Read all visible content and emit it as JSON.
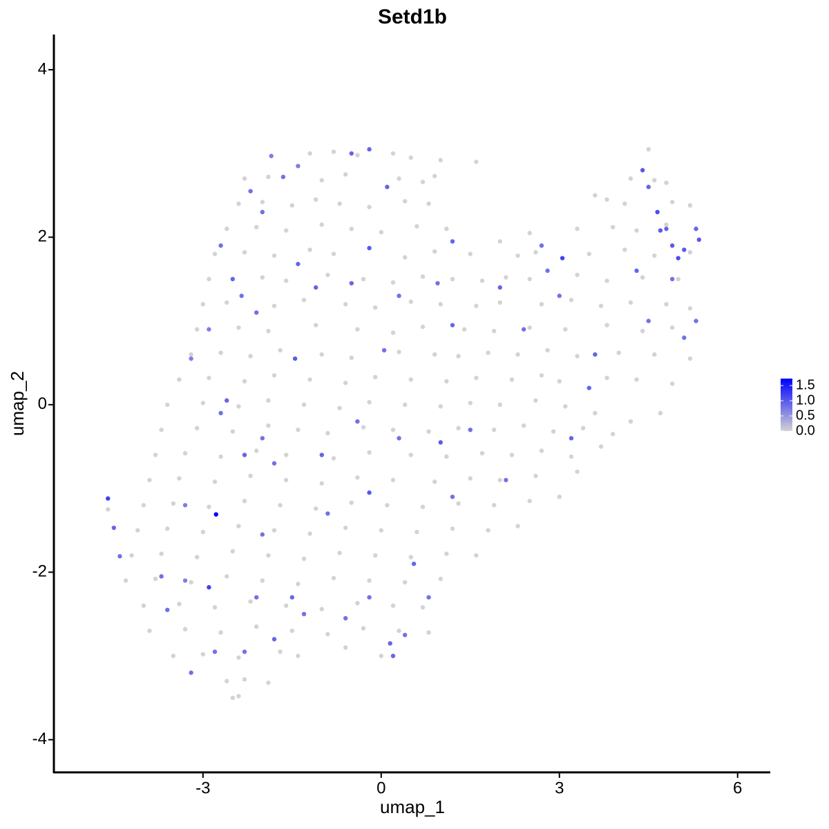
{
  "chart_data": {
    "type": "scatter",
    "title": "Setd1b",
    "x_label": "umap_1",
    "y_label": "umap_2",
    "xlim": [
      -5.51,
      6.55
    ],
    "ylim": [
      -4.39,
      4.42
    ],
    "xticks": [
      -3,
      0,
      3,
      6
    ],
    "yticks": [
      -4,
      -2,
      0,
      2,
      4
    ],
    "low_color": "#d3d3d3",
    "high_color": "#0000ff",
    "colorlim": [
      0,
      1.73
    ],
    "colorticks": [
      {
        "value": 0,
        "label": "0.0"
      },
      0.5,
      {
        "value": 1,
        "label": "1.0"
      },
      1.5
    ],
    "x": [
      -1.2,
      -0.8,
      -0.4,
      0.2,
      0.5,
      1.0,
      1.6,
      4.5,
      -2.3,
      -1.9,
      -1.0,
      -0.6,
      0.3,
      0.7,
      0.9,
      4.2,
      4.6,
      4.8,
      -2.4,
      -2.0,
      -1.5,
      -1.1,
      -0.7,
      -0.2,
      0.4,
      0.8,
      3.6,
      3.8,
      4.1,
      4.9,
      5.2,
      -2.6,
      -2.1,
      -1.6,
      -1.0,
      -0.5,
      0.0,
      0.6,
      1.1,
      2.0,
      2.5,
      3.3,
      3.9,
      4.3,
      4.8,
      -2.8,
      -2.3,
      -1.8,
      -1.2,
      -0.8,
      0.4,
      0.9,
      1.5,
      2.3,
      2.6,
      3.5,
      4.1,
      4.6,
      5.2,
      -2.9,
      -2.0,
      -1.6,
      -0.9,
      -0.3,
      0.2,
      0.7,
      1.2,
      1.7,
      2.1,
      2.5,
      3.3,
      3.8,
      4.4,
      5.0,
      -3.0,
      -2.6,
      -1.8,
      -1.3,
      -0.6,
      -0.1,
      0.5,
      1.0,
      1.6,
      2.0,
      2.7,
      3.2,
      3.7,
      4.2,
      4.8,
      5.2,
      -3.1,
      -2.4,
      -1.9,
      -1.1,
      -0.4,
      0.2,
      0.7,
      1.4,
      1.9,
      2.5,
      3.1,
      3.8,
      4.4,
      4.9,
      -3.2,
      -2.7,
      -2.2,
      -1.7,
      -1.0,
      -0.5,
      0.3,
      0.9,
      1.3,
      1.8,
      2.3,
      2.8,
      3.3,
      4.0,
      4.6,
      5.2,
      -3.4,
      -2.9,
      -2.3,
      -1.8,
      -1.2,
      -0.6,
      -0.1,
      0.5,
      1.1,
      1.6,
      2.2,
      2.7,
      3.0,
      3.8,
      4.3,
      4.9,
      -3.6,
      -3.0,
      -2.4,
      -1.9,
      -1.3,
      -0.7,
      -0.2,
      0.4,
      1.0,
      1.5,
      2.0,
      2.6,
      3.1,
      3.6,
      4.2,
      4.7,
      -3.7,
      -3.1,
      -2.5,
      -1.9,
      -1.4,
      -0.9,
      -0.3,
      0.2,
      0.8,
      1.3,
      1.9,
      2.4,
      2.9,
      3.4,
      3.9,
      -3.8,
      -3.3,
      -2.7,
      -2.1,
      -1.6,
      -0.8,
      -0.2,
      0.5,
      1.1,
      1.7,
      2.2,
      2.7,
      3.2,
      3.7,
      -3.9,
      -3.4,
      -2.8,
      -2.2,
      -1.6,
      -1.0,
      -0.4,
      0.2,
      0.9,
      1.5,
      2.0,
      2.6,
      3.3,
      -4.6,
      -4.0,
      -3.5,
      -2.9,
      -2.3,
      -1.7,
      -1.1,
      -0.5,
      0.1,
      0.7,
      1.3,
      1.9,
      2.5,
      3.0,
      -4.1,
      -3.6,
      -3.0,
      -2.4,
      -1.8,
      -1.2,
      -0.6,
      0.0,
      0.6,
      1.2,
      1.8,
      2.3,
      -4.2,
      -3.7,
      -3.1,
      -2.5,
      -1.9,
      -1.3,
      -0.7,
      -0.1,
      0.5,
      1.1,
      1.6,
      -4.3,
      -3.8,
      -3.2,
      -2.6,
      -2.0,
      -1.4,
      -0.8,
      -0.2,
      0.4,
      1.0,
      -4.0,
      -3.4,
      -2.8,
      -2.2,
      -1.6,
      -1.0,
      -0.4,
      0.2,
      0.7,
      -3.9,
      -3.3,
      -2.7,
      -2.1,
      -1.5,
      -0.9,
      -0.3,
      0.3,
      0.8,
      -3.5,
      -3.0,
      -2.4,
      -1.7,
      -1.4,
      -0.6,
      0.0,
      -2.6,
      -2.3,
      -1.9,
      -2.5,
      -2.4,
      -4.6,
      -4.5,
      -4.4,
      -2.9,
      -2.2,
      -1.85,
      -1.65,
      -1.4,
      -0.5,
      -0.2,
      0.1,
      1.2,
      -0.2,
      -1.4,
      -2.7,
      -2.5,
      -2.35,
      -2.9,
      -3.2,
      -1.45,
      0.05,
      1.2,
      3.05,
      2.0,
      2.8,
      3.0,
      3.6,
      3.5,
      3.2,
      4.3,
      4.4,
      4.5,
      4.65,
      4.7,
      4.9,
      5.0,
      5.1,
      5.3,
      5.35,
      5.3,
      5.1,
      4.9,
      4.8,
      4.5,
      2.4,
      1.0,
      -1.0,
      -2.0,
      -2.3,
      -1.8,
      -0.2,
      0.3,
      -2.6,
      -2.7,
      -0.9,
      -2.0,
      -2.1,
      -1.5,
      -1.3,
      -1.8,
      -2.3,
      -3.2,
      -2.8,
      -3.6,
      -3.7,
      -3.3,
      -0.6,
      0.15,
      0.2,
      0.55,
      0.8,
      -0.2,
      0.4,
      2.1,
      1.5,
      -0.4,
      -1.1,
      -0.5,
      0.3,
      0.95,
      -2.0,
      -2.1,
      2.7,
      -3.3,
      1.2,
      -2.78
    ],
    "y": [
      3.0,
      3.02,
      2.98,
      3.0,
      2.95,
      2.92,
      2.9,
      3.05,
      2.7,
      2.72,
      2.68,
      2.75,
      2.7,
      2.66,
      2.73,
      2.7,
      2.68,
      2.65,
      2.4,
      2.42,
      2.38,
      2.45,
      2.4,
      2.36,
      2.43,
      2.4,
      2.5,
      2.45,
      2.4,
      2.42,
      2.38,
      2.1,
      2.12,
      2.08,
      2.15,
      2.1,
      2.06,
      2.13,
      2.1,
      1.95,
      2.05,
      2.1,
      2.12,
      2.08,
      2.15,
      1.8,
      1.82,
      1.78,
      1.85,
      1.8,
      1.76,
      1.83,
      1.8,
      1.78,
      1.82,
      1.8,
      1.85,
      1.78,
      1.82,
      1.5,
      1.52,
      1.48,
      1.55,
      1.5,
      1.46,
      1.53,
      1.5,
      1.48,
      1.52,
      1.5,
      1.55,
      1.48,
      1.52,
      1.5,
      1.2,
      1.22,
      1.18,
      1.25,
      1.2,
      1.16,
      1.23,
      1.2,
      1.18,
      1.22,
      1.2,
      1.25,
      1.18,
      1.22,
      1.2,
      1.15,
      0.9,
      0.92,
      0.88,
      0.95,
      0.9,
      0.86,
      0.93,
      0.9,
      0.88,
      0.92,
      0.9,
      0.95,
      0.88,
      0.92,
      0.6,
      0.62,
      0.58,
      0.65,
      0.6,
      0.56,
      0.63,
      0.6,
      0.58,
      0.62,
      0.6,
      0.65,
      0.58,
      0.62,
      0.6,
      0.55,
      0.3,
      0.32,
      0.28,
      0.35,
      0.3,
      0.26,
      0.33,
      0.3,
      0.28,
      0.32,
      0.3,
      0.35,
      0.28,
      0.32,
      0.3,
      0.25,
      0.0,
      0.02,
      -0.02,
      0.05,
      0.0,
      -0.04,
      0.03,
      0.0,
      -0.02,
      0.02,
      0.0,
      0.05,
      -0.02,
      -0.1,
      -0.2,
      -0.1,
      -0.3,
      -0.28,
      -0.32,
      -0.25,
      -0.3,
      -0.34,
      -0.27,
      -0.3,
      -0.32,
      -0.28,
      -0.3,
      -0.25,
      -0.32,
      -0.28,
      -0.35,
      -0.6,
      -0.58,
      -0.62,
      -0.55,
      -0.6,
      -0.64,
      -0.57,
      -0.6,
      -0.62,
      -0.58,
      -0.6,
      -0.55,
      -0.62,
      -0.5,
      -0.9,
      -0.88,
      -0.92,
      -0.85,
      -0.9,
      -0.94,
      -0.87,
      -0.9,
      -0.92,
      -0.88,
      -0.9,
      -0.85,
      -0.8,
      -1.25,
      -1.2,
      -1.18,
      -1.22,
      -1.15,
      -1.2,
      -1.24,
      -1.17,
      -1.2,
      -1.22,
      -1.18,
      -1.2,
      -1.15,
      -1.1,
      -1.5,
      -1.48,
      -1.52,
      -1.45,
      -1.5,
      -1.54,
      -1.47,
      -1.5,
      -1.52,
      -1.48,
      -1.5,
      -1.45,
      -1.8,
      -1.78,
      -1.82,
      -1.75,
      -1.8,
      -1.84,
      -1.77,
      -1.8,
      -1.82,
      -1.78,
      -1.8,
      -2.1,
      -2.08,
      -2.12,
      -2.05,
      -2.1,
      -2.14,
      -2.07,
      -2.1,
      -2.12,
      -2.08,
      -2.4,
      -2.38,
      -2.42,
      -2.35,
      -2.4,
      -2.44,
      -2.37,
      -2.4,
      -2.42,
      -2.7,
      -2.68,
      -2.72,
      -2.65,
      -2.7,
      -2.74,
      -2.67,
      -2.7,
      -2.72,
      -3.0,
      -2.98,
      -3.02,
      -2.95,
      -3.0,
      -2.9,
      -3.0,
      -3.3,
      -3.28,
      -3.32,
      -3.5,
      -3.48,
      -1.12,
      -1.47,
      -1.81,
      -2.18,
      2.55,
      2.97,
      2.72,
      2.85,
      3.0,
      3.05,
      2.6,
      1.95,
      1.87,
      1.68,
      1.9,
      1.5,
      1.3,
      0.9,
      0.55,
      0.55,
      0.65,
      0.95,
      1.75,
      1.4,
      1.6,
      1.3,
      0.6,
      0.2,
      -0.4,
      1.6,
      2.8,
      2.6,
      2.3,
      2.08,
      1.9,
      1.75,
      1.85,
      2.1,
      1.97,
      1.0,
      0.8,
      1.5,
      2.1,
      1.0,
      0.9,
      -0.45,
      -0.6,
      -0.4,
      -0.6,
      -0.7,
      -1.05,
      -0.4,
      0.05,
      -0.1,
      -1.3,
      -1.55,
      -2.3,
      -2.3,
      -2.5,
      -2.8,
      -2.95,
      -3.2,
      -2.95,
      -2.45,
      -2.05,
      -2.1,
      -2.55,
      -2.85,
      -3.0,
      -1.9,
      -2.3,
      -2.3,
      -2.75,
      -0.9,
      -0.3,
      -0.2,
      1.4,
      1.45,
      1.3,
      1.45,
      2.3,
      1.1,
      1.9,
      -1.2,
      -1.1,
      -1.31
    ],
    "values": [
      0,
      0,
      0,
      0,
      0,
      0,
      0,
      0,
      0,
      0,
      0,
      0,
      0,
      0,
      0,
      0,
      0,
      0,
      0,
      0,
      0,
      0,
      0,
      0,
      0,
      0,
      0,
      0,
      0,
      0,
      0,
      0,
      0,
      0,
      0,
      0,
      0,
      0,
      0,
      0,
      0,
      0,
      0,
      0,
      0,
      0,
      0,
      0,
      0,
      0,
      0,
      0,
      0,
      0,
      0,
      0,
      0,
      0,
      0,
      0,
      0,
      0,
      0,
      0,
      0,
      0,
      0,
      0,
      0,
      0,
      0,
      0,
      0,
      0,
      0,
      0,
      0,
      0,
      0,
      0,
      0,
      0,
      0,
      0,
      0,
      0,
      0,
      0,
      0,
      0,
      0,
      0,
      0,
      0,
      0,
      0,
      0,
      0,
      0,
      0,
      0,
      0,
      0,
      0,
      0,
      0,
      0,
      0,
      0,
      0,
      0,
      0,
      0,
      0,
      0,
      0,
      0,
      0,
      0,
      0,
      0,
      0,
      0,
      0,
      0,
      0,
      0,
      0,
      0,
      0,
      0,
      0,
      0,
      0,
      0,
      0,
      0,
      0,
      0,
      0,
      0,
      0,
      0,
      0,
      0,
      0,
      0,
      0,
      0,
      0,
      0,
      0,
      0,
      0,
      0,
      0,
      0,
      0,
      0,
      0,
      0,
      0,
      0,
      0,
      0,
      0,
      0,
      0,
      0,
      0,
      0,
      0,
      0,
      0,
      0,
      0,
      0,
      0,
      0,
      0,
      0,
      0,
      0,
      0,
      0,
      0,
      0,
      0,
      0,
      0,
      0,
      0,
      0,
      0,
      0,
      0,
      0,
      0,
      0,
      0,
      0,
      0,
      0,
      0,
      0,
      0,
      0,
      0,
      0,
      0,
      0,
      0,
      0,
      0,
      0,
      0,
      0,
      0,
      0,
      0,
      0,
      0,
      0,
      0,
      0,
      0,
      0,
      0,
      0,
      0,
      0,
      0,
      0,
      0,
      0,
      0,
      0,
      0,
      0,
      0,
      0,
      0,
      0,
      0,
      0,
      0,
      0,
      0,
      0,
      0,
      0,
      0,
      0,
      0,
      0,
      0,
      0,
      0,
      0,
      0,
      0,
      0,
      0,
      0,
      0,
      0,
      0,
      0,
      0,
      0,
      0,
      1.2,
      0.9,
      0.8,
      1.2,
      0.8,
      0.7,
      0.8,
      0.7,
      0.9,
      0.9,
      0.9,
      0.9,
      1.0,
      0.9,
      0.8,
      0.9,
      0.8,
      0.7,
      0.7,
      1.0,
      0.8,
      0.9,
      1.2,
      0.9,
      0.8,
      0.8,
      0.9,
      0.9,
      0.9,
      0.9,
      1.0,
      0.9,
      1.1,
      1.0,
      1.0,
      1.1,
      1.0,
      0.9,
      1.0,
      0.8,
      0.8,
      0.8,
      0.9,
      0.8,
      0.8,
      1.0,
      0.9,
      0.8,
      0.9,
      0.8,
      1.0,
      0.8,
      0.9,
      0.8,
      0.8,
      0.8,
      0.8,
      0.9,
      0.8,
      0.9,
      0.8,
      0.8,
      0.8,
      0.8,
      0.8,
      0.7,
      0.8,
      0.9,
      0.9,
      0.9,
      0.8,
      0.8,
      0.8,
      0.8,
      0.8,
      0.8,
      0.9,
      0.9,
      0.8,
      0.8,
      0.8,
      0.8,
      0.8,
      0.7,
      0.8,
      1.7
    ]
  }
}
